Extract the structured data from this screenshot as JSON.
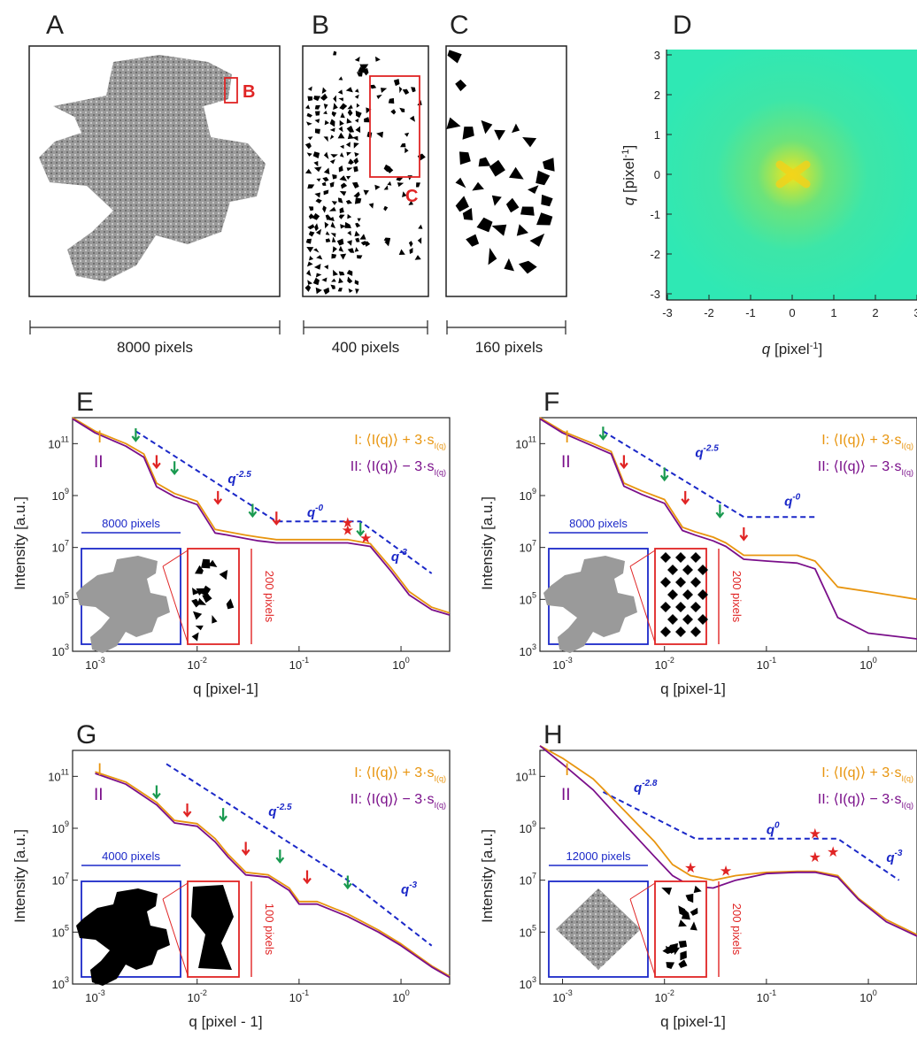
{
  "panels_top": {
    "A": {
      "label": "A",
      "scale": "8000 pixels",
      "zoom_tag": "B"
    },
    "B": {
      "label": "B",
      "scale": "400 pixels",
      "zoom_tag": "C"
    },
    "C": {
      "label": "C",
      "scale": "160 pixels"
    },
    "D": {
      "label": "D",
      "xlabel": "q [pixel-1]",
      "ylabel": "q [pixel-1]",
      "ticks": [
        "-3",
        "-2",
        "-1",
        "0",
        "1",
        "2",
        "3"
      ],
      "colormap": "green-yellow"
    }
  },
  "colors": {
    "I": "#e8950f",
    "II": "#7a0f8a",
    "guide": "#1b28c8",
    "zoom": "#e02424",
    "green_arrow": "#1a9a50",
    "red_arrow": "#e02424"
  },
  "legend": {
    "I": "I",
    "II": "II",
    "I_text": "⟨I(q)⟩ + 3·s",
    "II_text": "⟨I(q)⟩ − 3·s",
    "sub": "I(q)"
  },
  "axes": {
    "ylabel": "Intensity  [a.u.]",
    "xlabel": "q [pixel-1]",
    "xlabel_G": "q [pixel - 1]",
    "yticks": [
      "3",
      "5",
      "7",
      "9",
      "11"
    ],
    "xticks": [
      "-3",
      "-2",
      "-1",
      "0"
    ]
  },
  "chart_data": [
    {
      "panel": "E",
      "type": "line",
      "xscale": "log",
      "yscale": "log",
      "xlim": [
        0.0006,
        3
      ],
      "ylim": [
        1000,
        1000000000000
      ],
      "inset_scale": "8000 pixels",
      "inset_side": "200 pixels",
      "guides": [
        "q-2.5",
        "q-0",
        "q-3"
      ],
      "series": [
        {
          "name": "I",
          "x": [
            0.0006,
            0.001,
            0.002,
            0.003,
            0.004,
            0.006,
            0.01,
            0.015,
            0.02,
            0.03,
            0.04,
            0.06,
            0.1,
            0.2,
            0.3,
            0.5,
            0.8,
            1.2,
            2,
            3
          ],
          "y": [
            1000000000000.0,
            300000000000.0,
            100000000000.0,
            40000000000.0,
            3000000000.0,
            1200000000.0,
            600000000.0,
            50000000.0,
            40000000.0,
            30000000.0,
            25000000.0,
            20000000.0,
            20000000.0,
            20000000.0,
            20000000.0,
            14000000.0,
            1600000.0,
            200000.0,
            50000.0,
            30000.0
          ]
        },
        {
          "name": "II",
          "x": [
            0.0006,
            0.001,
            0.002,
            0.003,
            0.004,
            0.006,
            0.01,
            0.015,
            0.02,
            0.03,
            0.04,
            0.06,
            0.1,
            0.2,
            0.3,
            0.5,
            0.8,
            1.2,
            2,
            3
          ],
          "y": [
            900000000000.0,
            260000000000.0,
            80000000000.0,
            30000000000.0,
            2200000000.0,
            900000000.0,
            450000000.0,
            36000000.0,
            30000000.0,
            22000000.0,
            18000000.0,
            15000000.0,
            15000000.0,
            15000000.0,
            15000000.0,
            11000000.0,
            1200000.0,
            150000.0,
            40000.0,
            25000.0
          ]
        }
      ]
    },
    {
      "panel": "F",
      "type": "line",
      "xscale": "log",
      "yscale": "log",
      "xlim": [
        0.0006,
        3
      ],
      "ylim": [
        1000,
        1000000000000
      ],
      "inset_scale": "8000 pixels",
      "inset_side": "200 pixels",
      "guides": [
        "q-2.5",
        "q-0"
      ],
      "series": [
        {
          "name": "I",
          "x": [
            0.0006,
            0.001,
            0.002,
            0.003,
            0.004,
            0.006,
            0.01,
            0.015,
            0.02,
            0.03,
            0.04,
            0.06,
            0.1,
            0.2,
            0.3,
            0.5,
            1,
            3
          ],
          "y": [
            1000000000000.0,
            300000000000.0,
            100000000000.0,
            50000000000.0,
            3000000000.0,
            1500000000.0,
            700000000.0,
            60000000.0,
            40000000.0,
            25000000.0,
            15000000.0,
            5000000.0,
            5000000.0,
            5000000.0,
            3000000.0,
            300000.0,
            200000.0,
            100000.0
          ]
        },
        {
          "name": "II",
          "x": [
            0.0006,
            0.001,
            0.002,
            0.003,
            0.004,
            0.006,
            0.01,
            0.015,
            0.02,
            0.03,
            0.04,
            0.06,
            0.1,
            0.2,
            0.3,
            0.5,
            1,
            3
          ],
          "y": [
            900000000000.0,
            260000000000.0,
            80000000000.0,
            40000000000.0,
            2300000000.0,
            1100000000.0,
            500000000.0,
            45000000.0,
            30000000.0,
            18000000.0,
            11000000.0,
            3500000.0,
            3000000.0,
            2500000.0,
            1500000.0,
            20000.0,
            5000.0,
            3000.0
          ]
        }
      ]
    },
    {
      "panel": "G",
      "type": "line",
      "xscale": "log",
      "yscale": "log",
      "xlim": [
        0.0006,
        3
      ],
      "ylim": [
        1000,
        1000000000000
      ],
      "inset_scale": "4000 pixels",
      "inset_side": "100 pixels",
      "guides": [
        "q-2.5",
        "q-3"
      ],
      "series": [
        {
          "name": "I",
          "x": [
            0.001,
            0.002,
            0.004,
            0.006,
            0.01,
            0.015,
            0.02,
            0.03,
            0.05,
            0.08,
            0.1,
            0.15,
            0.3,
            0.6,
            1,
            2,
            3
          ],
          "y": [
            150000000000.0,
            60000000000.0,
            10000000000.0,
            2000000000.0,
            1500000000.0,
            400000000.0,
            100000000.0,
            20000000.0,
            16000000.0,
            5000000.0,
            1500000.0,
            1500000.0,
            500000.0,
            120000.0,
            35000.0,
            5000.0,
            2000.0
          ]
        },
        {
          "name": "II",
          "x": [
            0.001,
            0.002,
            0.004,
            0.006,
            0.01,
            0.015,
            0.02,
            0.03,
            0.05,
            0.08,
            0.1,
            0.15,
            0.3,
            0.6,
            1,
            2,
            3
          ],
          "y": [
            130000000000.0,
            50000000000.0,
            8000000000.0,
            1600000000.0,
            1200000000.0,
            300000000.0,
            80000000.0,
            16000000.0,
            13000000.0,
            4000000.0,
            1200000.0,
            1200000.0,
            400000.0,
            100000.0,
            30000.0,
            4500.0,
            1800.0
          ]
        }
      ]
    },
    {
      "panel": "H",
      "type": "line",
      "xscale": "log",
      "yscale": "log",
      "xlim": [
        0.0006,
        3
      ],
      "ylim": [
        1000,
        1000000000000
      ],
      "inset_scale": "12000 pixels",
      "inset_side": "200 pixels",
      "guides": [
        "q-2.8",
        "q0",
        "q-3"
      ],
      "series": [
        {
          "name": "I",
          "x": [
            0.0006,
            0.001,
            0.002,
            0.004,
            0.008,
            0.012,
            0.018,
            0.03,
            0.05,
            0.1,
            0.2,
            0.3,
            0.5,
            0.8,
            1.5,
            3
          ],
          "y": [
            1500000000000.0,
            500000000000.0,
            80000000000.0,
            5000000000.0,
            300000000.0,
            40000000.0,
            15000000.0,
            10000000.0,
            15000000.0,
            20000000.0,
            22000000.0,
            22000000.0,
            15000000.0,
            2000000.0,
            300000.0,
            80000.0
          ]
        },
        {
          "name": "II",
          "x": [
            0.0006,
            0.001,
            0.002,
            0.004,
            0.008,
            0.012,
            0.018,
            0.03,
            0.05,
            0.1,
            0.2,
            0.3,
            0.5,
            0.8,
            1.5,
            3
          ],
          "y": [
            1500000000000.0,
            300000000000.0,
            30000000000.0,
            1500000000.0,
            80000000.0,
            15000000.0,
            6000000.0,
            5000000.0,
            10000000.0,
            18000000.0,
            20000000.0,
            20000000.0,
            13000000.0,
            1800000.0,
            250000.0,
            70000.0
          ]
        }
      ]
    }
  ]
}
